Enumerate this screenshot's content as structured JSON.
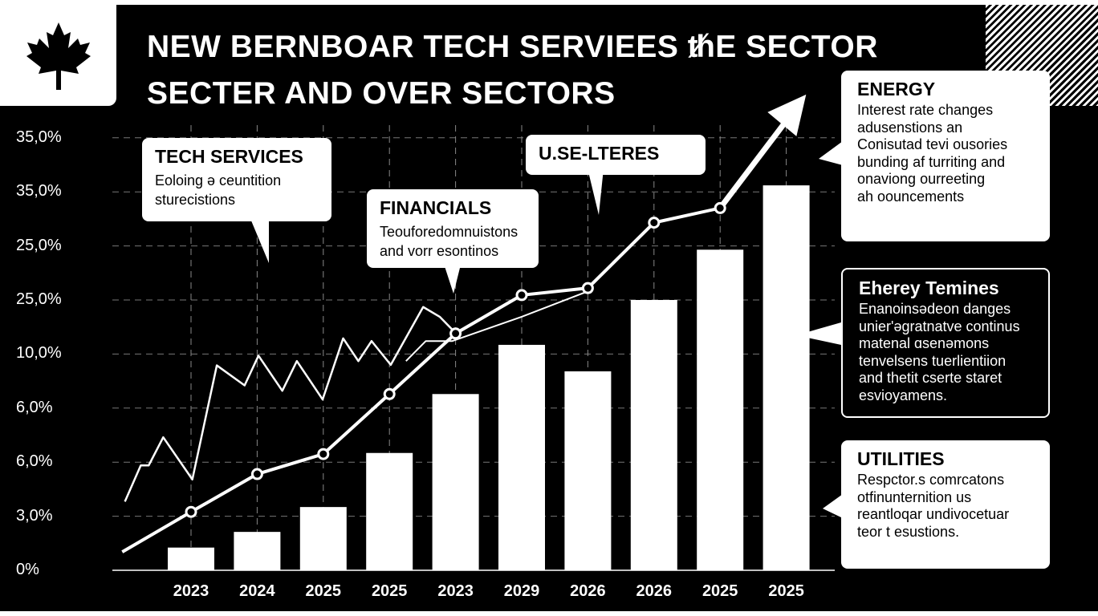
{
  "title": "NEW BERNBOAR TECH SERVIEES ᵺE SECTOR SECTER AND OVER SECTORS",
  "logo": "maple-leaf",
  "chart_data": {
    "type": "bar",
    "title": "NEW BERNBOAR TECH SERVIEES ᵺE SECTOR SECTER AND OVER SECTORS",
    "categories": [
      "2023",
      "2024",
      "2025",
      "2025",
      "2023",
      "2029",
      "2026",
      "2026",
      "2025",
      "2025"
    ],
    "y_tick_labels": [
      "0%",
      "3,0%",
      "6,0%",
      "6,0%",
      "10,0%",
      "25,0%",
      "25,0%",
      "35,0%",
      "35,0%"
    ],
    "ylim_grid_units": [
      0,
      8
    ],
    "grid": true,
    "series": [
      {
        "name": "bars",
        "type": "bar",
        "values": [
          0.42,
          0.71,
          1.17,
          2.17,
          3.26,
          4.17,
          3.68,
          5.0,
          5.93,
          7.12
        ]
      },
      {
        "name": "trend",
        "type": "line",
        "x": [
          -1.04,
          0,
          1,
          2,
          3,
          4,
          5,
          6,
          7,
          8
        ],
        "values": [
          0.34,
          1.08,
          1.78,
          2.15,
          3.26,
          4.38,
          5.09,
          5.22,
          6.43,
          6.7
        ],
        "arrow_to": [
          9.3,
          8.8
        ]
      },
      {
        "name": "volatile",
        "type": "line",
        "x": [
          -1.0,
          -0.76,
          -0.64,
          -0.42,
          0.02,
          0.39,
          0.81,
          1.02,
          1.38,
          1.6,
          1.99,
          2.3,
          2.53,
          2.73,
          3.02,
          3.51,
          3.76,
          4.0
        ],
        "values": [
          1.27,
          1.94,
          1.94,
          2.46,
          1.68,
          3.79,
          3.42,
          3.97,
          3.32,
          3.87,
          3.16,
          4.29,
          3.87,
          4.24,
          3.8,
          4.87,
          4.69,
          4.39
        ]
      },
      {
        "name": "secondary",
        "type": "line",
        "x": [
          3.25,
          3.55,
          3.95,
          5.0,
          6.0
        ],
        "values": [
          3.87,
          4.24,
          4.24,
          4.69,
          5.16
        ]
      }
    ],
    "annotations": [
      {
        "title": "TECH SERVICES",
        "text": "Eoloing ǝ ceuntition\nsturecistions"
      },
      {
        "title": "FINANCIALS",
        "text": "Teoufore​domnuistons\nand vorr esontinos"
      },
      {
        "title": "U.SE-LTERES",
        "text": ""
      }
    ]
  },
  "side_panels": [
    {
      "title": "ENERGY",
      "text": "Interest rate changes\nadusenstions an\nConisutad tevi ousories\nbunding af turriting and\nonaviong ourreeting\nah oouncements"
    },
    {
      "title": "Eherey Temines",
      "text": "Enanoinsədeon danges\nunier'əgratnatve continus\nmatenal ɑsenəmons\ntenvelsens tuerlientiion\nand thetit cserte staret\nesvioyamens."
    },
    {
      "title": "UTILITIES",
      "text": "Respctor.s comrcatons\notfinunternition us\nreantloqar undivocetuar\nteor t esustions."
    }
  ],
  "colors": {
    "background": "#000000",
    "foreground": "#ffffff"
  }
}
